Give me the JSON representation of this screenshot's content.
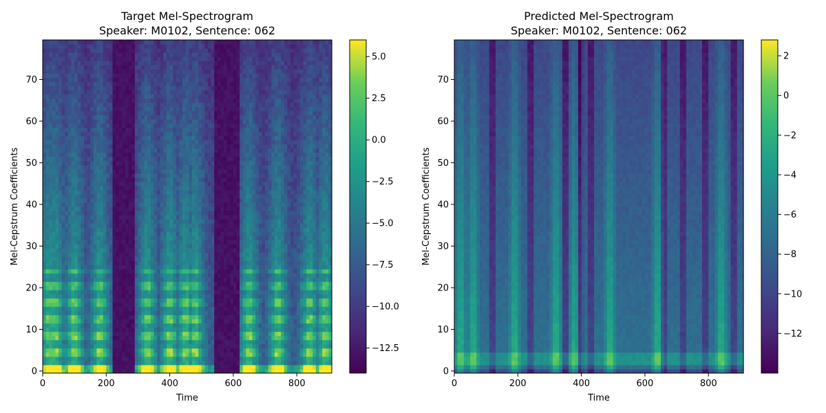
{
  "chart_data": [
    {
      "type": "heatmap",
      "title_line1": "Target Mel-Spectrogram",
      "title_line2": "Speaker: M0102, Sentence: 062",
      "xlabel": "Time",
      "ylabel": "Mel-Cepstrum Coefficients",
      "xlim": [
        0,
        910
      ],
      "ylim": [
        -0.5,
        79.5
      ],
      "xticks": [
        0,
        200,
        400,
        600,
        800
      ],
      "yticks": [
        0,
        10,
        20,
        30,
        40,
        50,
        60,
        70
      ],
      "colorbar": {
        "range": [
          -14,
          6
        ],
        "ticks": [
          5.0,
          2.5,
          0.0,
          -2.5,
          -5.0,
          -7.5,
          -10.0,
          -12.5
        ],
        "tick_labels": [
          "5.0",
          "2.5",
          "0.0",
          "−2.5",
          "−5.0",
          "−7.5",
          "−10.0",
          "−12.5"
        ]
      },
      "colormap": "viridis",
      "silences": [
        [
          220,
          290
        ],
        [
          540,
          620
        ]
      ],
      "voiced_bursts": [
        20,
        40,
        100,
        180,
        330,
        400,
        450,
        480,
        650,
        740,
        840,
        890
      ],
      "grid": false
    },
    {
      "type": "heatmap",
      "title_line1": "Predicted Mel-Spectrogram",
      "title_line2": "Speaker: M0102, Sentence: 062",
      "xlabel": "Time",
      "ylabel": "Mel-Cepstrum Coefficients",
      "xlim": [
        0,
        910
      ],
      "ylim": [
        -0.5,
        79.5
      ],
      "xticks": [
        0,
        200,
        400,
        600,
        800
      ],
      "yticks": [
        0,
        10,
        20,
        30,
        40,
        50,
        60,
        70
      ],
      "colorbar": {
        "range": [
          -14,
          2.8
        ],
        "ticks": [
          2,
          0,
          -2,
          -4,
          -6,
          -8,
          -10,
          -12
        ],
        "tick_labels": [
          "2",
          "0",
          "−2",
          "−4",
          "−6",
          "−8",
          "−10",
          "−12"
        ]
      },
      "colormap": "viridis",
      "dark_bands": [
        120,
        240,
        350,
        395,
        430,
        660,
        720,
        790,
        880
      ],
      "bright_bands": [
        20,
        60,
        190,
        320,
        380,
        490,
        640,
        840
      ],
      "grid": false
    }
  ]
}
